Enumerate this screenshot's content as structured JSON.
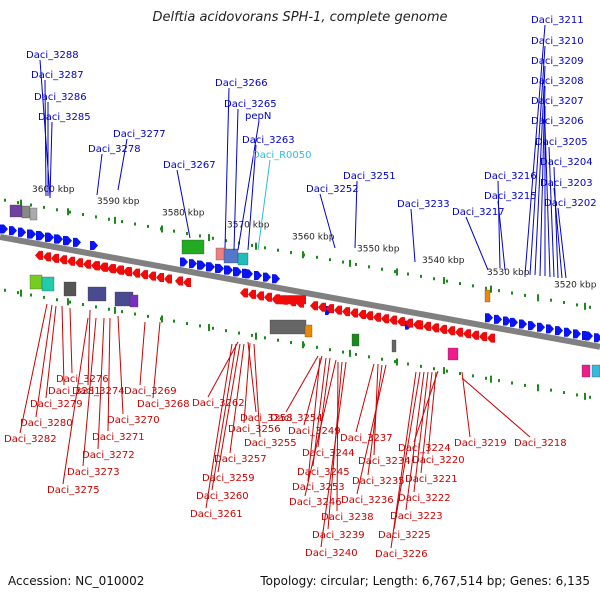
{
  "title": "Delftia acidovorans SPH-1, complete genome",
  "footer": {
    "accession": "Accession: NC_010002",
    "summary": "Topology: circular; Length: 6,767,514 bp; Genes: 6,135"
  },
  "colors": {
    "forward_label": "#0000cc",
    "reverse_label": "#cc0000",
    "rna_label": "#33bbdd",
    "forward_arrow": "#0a14f0",
    "reverse_arrow": "#f00a0a",
    "backbone": "#808080",
    "tick": "#1a8a1a"
  },
  "scale": {
    "ticks": [
      "3600 kbp",
      "3590 kbp",
      "3580 kbp",
      "3570 kbp",
      "3560 kbp",
      "3550 kbp",
      "3540 kbp",
      "3530 kbp",
      "3520 kbp"
    ]
  },
  "forward_genes": [
    "Daci_3288",
    "Daci_3287",
    "Daci_3286",
    "Daci_3285",
    "Daci_3277",
    "Daci_3278",
    "Daci_3267",
    "Daci_3266",
    "Daci_3265",
    "pepN",
    "Daci_3263",
    "Daci_3252",
    "Daci_3251",
    "Daci_3233",
    "Daci_3216",
    "Daci_3215",
    "Daci_3217",
    "Daci_3211",
    "Daci_3210",
    "Daci_3209",
    "Daci_3208",
    "Daci_3207",
    "Daci_3206",
    "Daci_3205",
    "Daci_3204",
    "Daci_3203",
    "Daci_3202"
  ],
  "rna_genes": [
    "Daci_R0050"
  ],
  "reverse_genes": [
    "Daci_3276",
    "Daci_3281",
    "Daci_3279",
    "Daci_3280",
    "Daci_3282",
    "Daci_3274",
    "Daci_3270",
    "Daci_3271",
    "Daci_3272",
    "Daci_3273",
    "Daci_3275",
    "Daci_3269",
    "Daci_3268",
    "Daci_3262",
    "Daci_3258",
    "Daci_3256",
    "Daci_3255",
    "Daci_3257",
    "Daci_3259",
    "Daci_3260",
    "Daci_3261",
    "Daci_3254",
    "Daci_3249",
    "Daci_3244",
    "Daci_3245",
    "Daci_3253",
    "Daci_3246",
    "Daci_3237",
    "Daci_3234",
    "Daci_3235",
    "Daci_3236",
    "Daci_3238",
    "Daci_3239",
    "Daci_3240",
    "Daci_3224",
    "Daci_3220",
    "Daci_3221",
    "Daci_3222",
    "Daci_3223",
    "Daci_3225",
    "Daci_3226",
    "Daci_3219",
    "Daci_3218"
  ]
}
